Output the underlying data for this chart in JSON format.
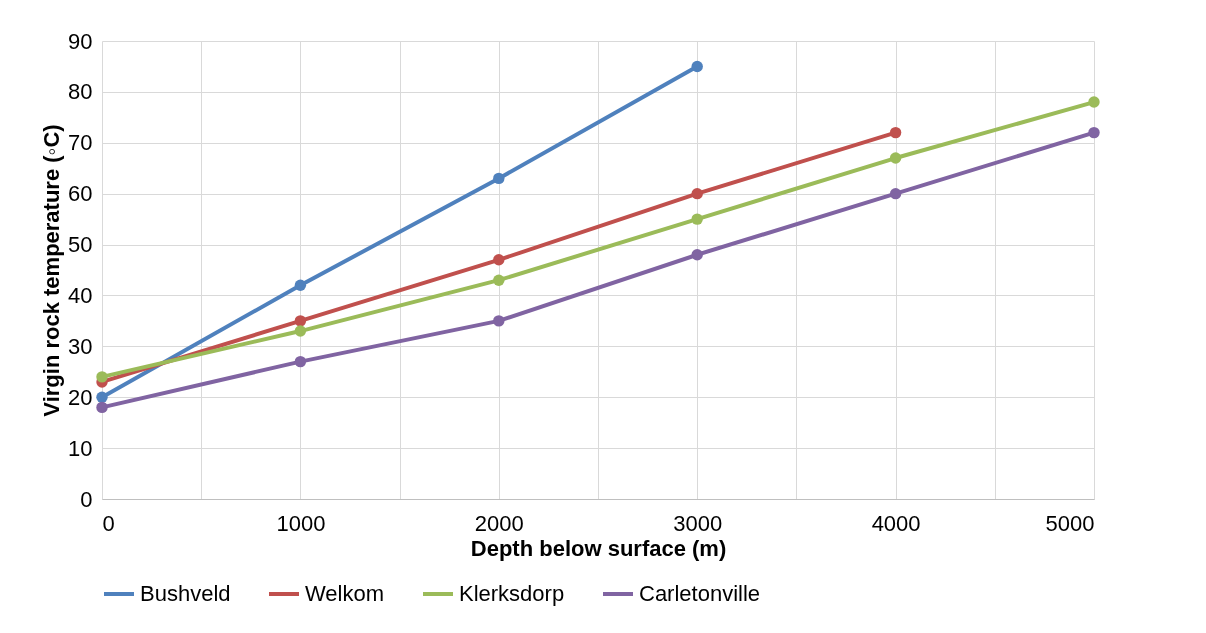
{
  "chart_data": {
    "type": "line",
    "xlabel": "Depth below surface (m)",
    "ylabel": "Virgin rock temperature (◦C)",
    "x": [
      0,
      1000,
      2000,
      3000,
      4000,
      5000
    ],
    "series": [
      {
        "name": "Bushveld",
        "color": "#4f81bd",
        "values": [
          20,
          42,
          63,
          85,
          null,
          null
        ]
      },
      {
        "name": "Welkom",
        "color": "#c0504d",
        "values": [
          23,
          35,
          47,
          60,
          72,
          null
        ]
      },
      {
        "name": "Klerksdorp",
        "color": "#9bbb59",
        "values": [
          24,
          33,
          43,
          55,
          67,
          78
        ]
      },
      {
        "name": "Carletonville",
        "color": "#8064a2",
        "values": [
          18,
          27,
          35,
          48,
          60,
          72
        ]
      }
    ],
    "xlim": [
      0,
      5000
    ],
    "xticks": [
      0,
      {
        "value": 500,
        "label": null
      },
      1000,
      {
        "value": 1500,
        "label": null
      },
      2000,
      {
        "value": 2500,
        "label": null
      },
      3000,
      {
        "value": 3500,
        "label": null
      },
      4000,
      {
        "value": 4500,
        "label": null
      },
      5000
    ],
    "ylim": [
      0,
      90
    ],
    "yticks": [
      0,
      10,
      20,
      30,
      40,
      50,
      60,
      70,
      80,
      90
    ],
    "grid": true,
    "legend": "bottom",
    "marker": "circle",
    "line_style": "solid"
  }
}
